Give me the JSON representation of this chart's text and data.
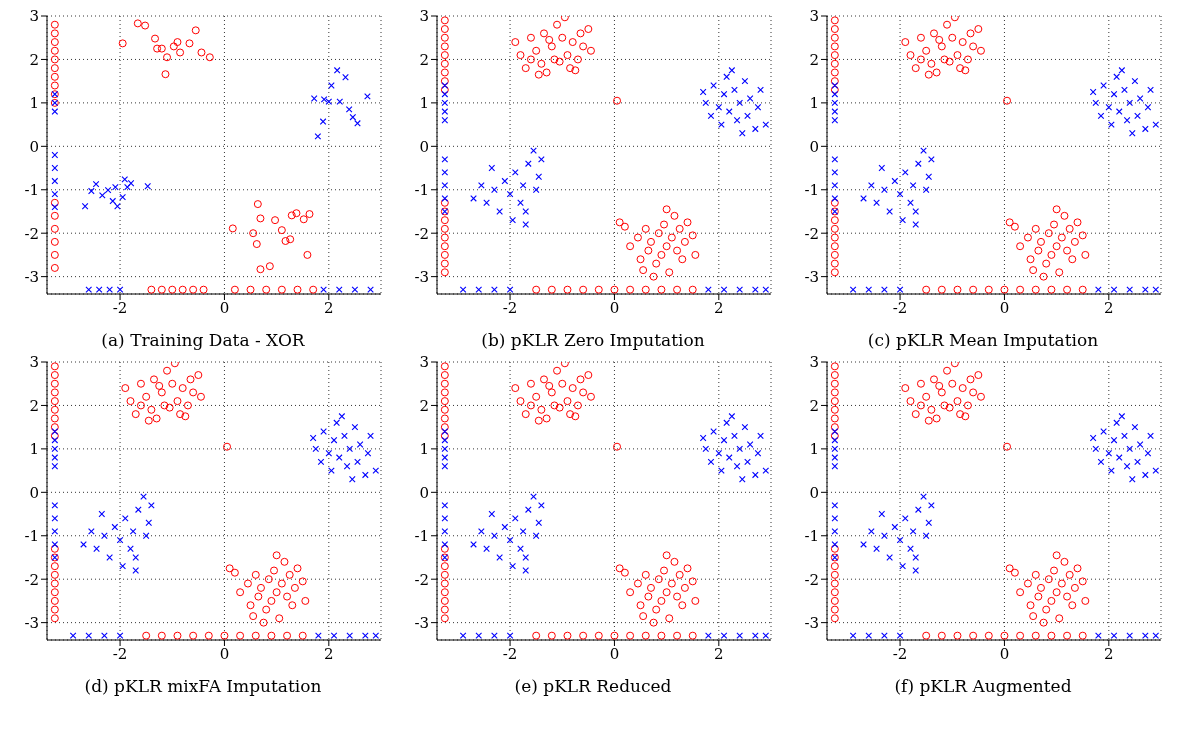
{
  "chart_data": [
    {
      "type": "scatter",
      "title": "(a) Training Data - XOR",
      "xlim": [
        -3.4,
        3
      ],
      "ylim": [
        -3.4,
        3
      ],
      "xticks": [
        -2,
        0,
        2
      ],
      "yticks": [
        -3,
        -2,
        -1,
        0,
        1,
        2,
        3
      ],
      "grid": true,
      "series": [
        {
          "color": "#ff0000",
          "marker": "circle",
          "x": [
            -1.95,
            -1.66,
            -1.33,
            -1.29,
            -1.2,
            -1.1,
            -1.13,
            -0.97,
            -0.85,
            -0.67,
            -0.55,
            -0.44,
            -0.28,
            -0.9,
            -1.52,
            0.16,
            0.55,
            0.64,
            0.69,
            0.62,
            0.69,
            0.87,
            1.1,
            1.17,
            1.26,
            1.29,
            1.38,
            1.52,
            1.63,
            1.59,
            0.97,
            -3.25,
            -3.25,
            -3.25,
            -3.25,
            -3.25,
            -3.25,
            -3.25,
            -3.25,
            -3.25,
            -3.25,
            -3.25,
            -3.25,
            -3.25,
            -3.25,
            -3.25,
            -3.25,
            -1.4,
            -1.2,
            -1.0,
            -0.8,
            -0.6,
            -0.4,
            0.2,
            0.5,
            0.8,
            1.1,
            1.4,
            1.7
          ],
          "values": [
            2.37,
            2.83,
            2.48,
            2.25,
            2.25,
            2.05,
            1.66,
            2.3,
            2.16,
            2.37,
            2.67,
            2.16,
            2.05,
            2.4,
            2.78,
            -1.89,
            -2.0,
            -1.33,
            -1.66,
            -2.25,
            -2.83,
            -2.76,
            -1.93,
            -2.18,
            -2.14,
            -1.59,
            -1.54,
            -1.68,
            -1.56,
            -2.5,
            -1.7,
            2.8,
            2.6,
            2.4,
            2.2,
            2.0,
            1.8,
            1.6,
            1.4,
            1.2,
            1.0,
            -1.3,
            -1.6,
            -1.9,
            -2.2,
            -2.5,
            -2.8,
            -3.3,
            -3.3,
            -3.3,
            -3.3,
            -3.3,
            -3.3,
            -3.3,
            -3.3,
            -3.3,
            -3.3,
            -3.3,
            -3.3
          ]
        },
        {
          "color": "#0000ff",
          "marker": "cross",
          "x": [
            1.72,
            1.79,
            1.89,
            1.91,
            2.05,
            2.16,
            2.21,
            2.32,
            2.39,
            2.46,
            2.55,
            2.74,
            2.0,
            -2.67,
            -2.55,
            -2.46,
            -2.34,
            -2.23,
            -2.14,
            -2.05,
            -1.95,
            -1.91,
            -1.86,
            -1.79,
            -2.09,
            -1.47,
            -3.25,
            -3.25,
            -3.25,
            -3.25,
            -3.25,
            -3.25,
            -3.25,
            -3.25,
            -2.6,
            -2.4,
            -2.2,
            -2.0,
            1.9,
            2.2,
            2.5,
            2.8
          ],
          "values": [
            1.1,
            0.23,
            0.57,
            1.08,
            1.4,
            1.75,
            1.03,
            1.59,
            0.85,
            0.67,
            0.53,
            1.15,
            1.03,
            -1.38,
            -1.03,
            -0.87,
            -1.13,
            -1.01,
            -1.26,
            -1.38,
            -1.17,
            -0.76,
            -0.94,
            -0.85,
            -0.94,
            -0.92,
            1.2,
            1.0,
            0.8,
            -0.2,
            -0.5,
            -0.8,
            -1.1,
            -1.4,
            -3.3,
            -3.3,
            -3.3,
            -3.3,
            -3.3,
            -3.3,
            -3.3,
            -3.3
          ]
        }
      ]
    },
    {
      "type": "scatter",
      "title": "(b) pKLR Zero Imputation",
      "xlim": [
        -3.4,
        3
      ],
      "ylim": [
        -3.4,
        3
      ],
      "xticks": [
        -2,
        0,
        2
      ],
      "yticks": [
        -3,
        -2,
        -1,
        0,
        1,
        2,
        3
      ],
      "grid": true,
      "series": [
        {
          "color": "#ff0000",
          "marker": "circle",
          "x": [
            -1.9,
            -1.8,
            -1.7,
            -1.6,
            -1.5,
            -1.4,
            -1.35,
            -1.3,
            -1.2,
            -1.15,
            -1.1,
            -1.0,
            -0.95,
            -0.9,
            -0.85,
            -0.8,
            -0.7,
            -0.65,
            -0.6,
            -0.5,
            -1.25,
            -1.05,
            -1.45,
            -0.75,
            -1.6,
            -0.45,
            0.05,
            0.1,
            0.2,
            0.3,
            0.45,
            0.5,
            0.6,
            0.65,
            0.7,
            0.8,
            0.85,
            0.9,
            0.95,
            1.0,
            1.05,
            1.1,
            1.15,
            1.2,
            1.25,
            1.3,
            1.35,
            1.4,
            1.5,
            1.55,
            0.75,
            1.0,
            0.55,
            -3.25,
            -3.25,
            -3.25,
            -3.25,
            -3.25,
            -3.25,
            -3.25,
            -3.25,
            -3.25,
            -3.25,
            -3.25,
            -3.25,
            -3.25,
            -3.25,
            -3.25,
            -3.25,
            -3.25,
            -3.25,
            -1.5,
            -1.2,
            -0.9,
            -0.6,
            -0.3,
            0,
            0.3,
            0.6,
            0.9,
            1.2,
            1.5
          ],
          "values": [
            2.4,
            2.1,
            1.8,
            2.5,
            2.2,
            1.9,
            2.6,
            1.7,
            2.3,
            2.0,
            2.8,
            2.5,
            2.97,
            2.1,
            1.8,
            2.4,
            2.0,
            2.6,
            2.3,
            2.7,
            2.45,
            1.95,
            1.65,
            1.75,
            2.0,
            2.2,
            1.05,
            -1.75,
            -1.85,
            -2.3,
            -2.1,
            -2.6,
            -1.9,
            -2.4,
            -2.2,
            -2.7,
            -2.0,
            -2.5,
            -1.8,
            -2.3,
            -2.9,
            -2.1,
            -1.6,
            -2.4,
            -1.9,
            -2.6,
            -2.2,
            -1.75,
            -2.05,
            -2.5,
            -3.0,
            -1.45,
            -2.85,
            2.9,
            2.7,
            2.5,
            2.3,
            2.1,
            1.9,
            1.7,
            1.5,
            1.3,
            -1.3,
            -1.5,
            -1.7,
            -1.9,
            -2.1,
            -2.3,
            -2.5,
            -2.7,
            -2.9,
            -3.3,
            -3.3,
            -3.3,
            -3.3,
            -3.3,
            -3.3,
            -3.3,
            -3.3,
            -3.3,
            -3.3,
            -3.3
          ]
        },
        {
          "color": "#0000ff",
          "marker": "cross",
          "x": [
            1.7,
            1.75,
            1.85,
            1.9,
            2.0,
            2.05,
            2.1,
            2.15,
            2.2,
            2.3,
            2.35,
            2.4,
            2.5,
            2.55,
            2.6,
            2.7,
            2.75,
            2.8,
            2.9,
            2.25,
            2.45,
            -2.7,
            -2.55,
            -2.45,
            -2.35,
            -2.3,
            -2.2,
            -2.1,
            -2.0,
            -1.95,
            -1.9,
            -1.8,
            -1.75,
            -1.7,
            -1.65,
            -1.55,
            -1.5,
            -1.45,
            -1.4,
            -1.7,
            -3.25,
            -3.25,
            -3.25,
            -3.25,
            -3.25,
            -3.25,
            -3.25,
            -3.25,
            -3.25,
            -3.25,
            -2.9,
            -2.6,
            -2.3,
            -2.0,
            1.8,
            2.1,
            2.4,
            2.7,
            2.9
          ],
          "values": [
            1.25,
            1.0,
            0.7,
            1.4,
            0.9,
            0.5,
            1.2,
            1.6,
            0.8,
            1.3,
            0.6,
            1.0,
            1.5,
            0.7,
            1.1,
            0.4,
            0.9,
            1.3,
            0.5,
            1.75,
            0.3,
            -1.2,
            -0.9,
            -1.3,
            -0.5,
            -1.0,
            -1.5,
            -0.8,
            -1.1,
            -1.7,
            -0.6,
            -1.3,
            -0.9,
            -1.5,
            -0.4,
            -0.1,
            -1.0,
            -0.7,
            -0.3,
            -1.8,
            1.4,
            1.2,
            1.0,
            0.8,
            0.6,
            -0.3,
            -0.6,
            -0.9,
            -1.2,
            -1.5,
            -3.3,
            -3.3,
            -3.3,
            -3.3,
            -3.3,
            -3.3,
            -3.3,
            -3.3,
            -3.3
          ]
        }
      ]
    },
    {
      "type": "scatter",
      "title": "(c) pKLR Mean Imputation",
      "xlim": [
        -3.4,
        3
      ],
      "ylim": [
        -3.4,
        3
      ],
      "xticks": [
        -2,
        0,
        2
      ],
      "yticks": [
        -3,
        -2,
        -1,
        0,
        1,
        2,
        3
      ],
      "grid": true,
      "series": [
        {
          "color": "#ff0000",
          "marker": "circle",
          "x": [
            -1.9,
            -1.8,
            -1.7,
            -1.6,
            -1.5,
            -1.4,
            -1.35,
            -1.3,
            -1.2,
            -1.15,
            -1.1,
            -1.0,
            -0.95,
            -0.9,
            -0.85,
            -0.8,
            -0.7,
            -0.65,
            -0.6,
            -0.5,
            -1.25,
            -1.05,
            -1.45,
            -0.75,
            -1.6,
            -0.45,
            0.05,
            0.1,
            0.2,
            0.3,
            0.45,
            0.5,
            0.6,
            0.65,
            0.7,
            0.8,
            0.85,
            0.9,
            0.95,
            1.0,
            1.05,
            1.1,
            1.15,
            1.2,
            1.25,
            1.3,
            1.35,
            1.4,
            1.5,
            1.55,
            0.75,
            1.0,
            0.55,
            -3.25,
            -3.25,
            -3.25,
            -3.25,
            -3.25,
            -3.25,
            -3.25,
            -3.25,
            -3.25,
            -3.25,
            -3.25,
            -3.25,
            -3.25,
            -3.25,
            -3.25,
            -3.25,
            -3.25,
            -3.25,
            -1.5,
            -1.2,
            -0.9,
            -0.6,
            -0.3,
            0,
            0.3,
            0.6,
            0.9,
            1.2,
            1.5
          ],
          "values": [
            2.4,
            2.1,
            1.8,
            2.5,
            2.2,
            1.9,
            2.6,
            1.7,
            2.3,
            2.0,
            2.8,
            2.5,
            2.97,
            2.1,
            1.8,
            2.4,
            2.0,
            2.6,
            2.3,
            2.7,
            2.45,
            1.95,
            1.65,
            1.75,
            2.0,
            2.2,
            1.05,
            -1.75,
            -1.85,
            -2.3,
            -2.1,
            -2.6,
            -1.9,
            -2.4,
            -2.2,
            -2.7,
            -2.0,
            -2.5,
            -1.8,
            -2.3,
            -2.9,
            -2.1,
            -1.6,
            -2.4,
            -1.9,
            -2.6,
            -2.2,
            -1.75,
            -2.05,
            -2.5,
            -3.0,
            -1.45,
            -2.85,
            2.9,
            2.7,
            2.5,
            2.3,
            2.1,
            1.9,
            1.7,
            1.5,
            1.3,
            -1.3,
            -1.5,
            -1.7,
            -1.9,
            -2.1,
            -2.3,
            -2.5,
            -2.7,
            -2.9,
            -3.3,
            -3.3,
            -3.3,
            -3.3,
            -3.3,
            -3.3,
            -3.3,
            -3.3,
            -3.3,
            -3.3,
            -3.3
          ]
        },
        {
          "color": "#0000ff",
          "marker": "cross",
          "x": [
            1.7,
            1.75,
            1.85,
            1.9,
            2.0,
            2.05,
            2.1,
            2.15,
            2.2,
            2.3,
            2.35,
            2.4,
            2.5,
            2.55,
            2.6,
            2.7,
            2.75,
            2.8,
            2.9,
            2.25,
            2.45,
            -2.7,
            -2.55,
            -2.45,
            -2.35,
            -2.3,
            -2.2,
            -2.1,
            -2.0,
            -1.95,
            -1.9,
            -1.8,
            -1.75,
            -1.7,
            -1.65,
            -1.55,
            -1.5,
            -1.45,
            -1.4,
            -1.7,
            -3.25,
            -3.25,
            -3.25,
            -3.25,
            -3.25,
            -3.25,
            -3.25,
            -3.25,
            -3.25,
            -3.25,
            -2.9,
            -2.6,
            -2.3,
            -2.0,
            1.8,
            2.1,
            2.4,
            2.7,
            2.9
          ],
          "values": [
            1.25,
            1.0,
            0.7,
            1.4,
            0.9,
            0.5,
            1.2,
            1.6,
            0.8,
            1.3,
            0.6,
            1.0,
            1.5,
            0.7,
            1.1,
            0.4,
            0.9,
            1.3,
            0.5,
            1.75,
            0.3,
            -1.2,
            -0.9,
            -1.3,
            -0.5,
            -1.0,
            -1.5,
            -0.8,
            -1.1,
            -1.7,
            -0.6,
            -1.3,
            -0.9,
            -1.5,
            -0.4,
            -0.1,
            -1.0,
            -0.7,
            -0.3,
            -1.8,
            1.4,
            1.2,
            1.0,
            0.8,
            0.6,
            -0.3,
            -0.6,
            -0.9,
            -1.2,
            -1.5,
            -3.3,
            -3.3,
            -3.3,
            -3.3,
            -3.3,
            -3.3,
            -3.3,
            -3.3,
            -3.3
          ]
        }
      ]
    },
    {
      "type": "scatter",
      "title": "(d) pKLR mixFA Imputation",
      "xlim": [
        -3.4,
        3
      ],
      "ylim": [
        -3.4,
        3
      ],
      "xticks": [
        -2,
        0,
        2
      ],
      "yticks": [
        -3,
        -2,
        -1,
        0,
        1,
        2,
        3
      ],
      "grid": true,
      "series": [
        {
          "color": "#ff0000",
          "marker": "circle",
          "x": [
            -1.9,
            -1.8,
            -1.7,
            -1.6,
            -1.5,
            -1.4,
            -1.35,
            -1.3,
            -1.2,
            -1.15,
            -1.1,
            -1.0,
            -0.95,
            -0.9,
            -0.85,
            -0.8,
            -0.7,
            -0.65,
            -0.6,
            -0.5,
            -1.25,
            -1.05,
            -1.45,
            -0.75,
            -1.6,
            -0.45,
            0.05,
            0.1,
            0.2,
            0.3,
            0.45,
            0.5,
            0.6,
            0.65,
            0.7,
            0.8,
            0.85,
            0.9,
            0.95,
            1.0,
            1.05,
            1.1,
            1.15,
            1.2,
            1.25,
            1.3,
            1.35,
            1.4,
            1.5,
            1.55,
            0.75,
            1.0,
            0.55,
            -3.25,
            -3.25,
            -3.25,
            -3.25,
            -3.25,
            -3.25,
            -3.25,
            -3.25,
            -3.25,
            -3.25,
            -3.25,
            -3.25,
            -3.25,
            -3.25,
            -3.25,
            -3.25,
            -3.25,
            -3.25,
            -1.5,
            -1.2,
            -0.9,
            -0.6,
            -0.3,
            0,
            0.3,
            0.6,
            0.9,
            1.2,
            1.5
          ],
          "values": [
            2.4,
            2.1,
            1.8,
            2.5,
            2.2,
            1.9,
            2.6,
            1.7,
            2.3,
            2.0,
            2.8,
            2.5,
            2.97,
            2.1,
            1.8,
            2.4,
            2.0,
            2.6,
            2.3,
            2.7,
            2.45,
            1.95,
            1.65,
            1.75,
            2.0,
            2.2,
            1.05,
            -1.75,
            -1.85,
            -2.3,
            -2.1,
            -2.6,
            -1.9,
            -2.4,
            -2.2,
            -2.7,
            -2.0,
            -2.5,
            -1.8,
            -2.3,
            -2.9,
            -2.1,
            -1.6,
            -2.4,
            -1.9,
            -2.6,
            -2.2,
            -1.75,
            -2.05,
            -2.5,
            -3.0,
            -1.45,
            -2.85,
            2.9,
            2.7,
            2.5,
            2.3,
            2.1,
            1.9,
            1.7,
            1.5,
            1.3,
            -1.3,
            -1.5,
            -1.7,
            -1.9,
            -2.1,
            -2.3,
            -2.5,
            -2.7,
            -2.9,
            -3.3,
            -3.3,
            -3.3,
            -3.3,
            -3.3,
            -3.3,
            -3.3,
            -3.3,
            -3.3,
            -3.3,
            -3.3
          ]
        },
        {
          "color": "#0000ff",
          "marker": "cross",
          "x": [
            1.7,
            1.75,
            1.85,
            1.9,
            2.0,
            2.05,
            2.1,
            2.15,
            2.2,
            2.3,
            2.35,
            2.4,
            2.5,
            2.55,
            2.6,
            2.7,
            2.75,
            2.8,
            2.9,
            2.25,
            2.45,
            -2.7,
            -2.55,
            -2.45,
            -2.35,
            -2.3,
            -2.2,
            -2.1,
            -2.0,
            -1.95,
            -1.9,
            -1.8,
            -1.75,
            -1.7,
            -1.65,
            -1.55,
            -1.5,
            -1.45,
            -1.4,
            -1.7,
            -3.25,
            -3.25,
            -3.25,
            -3.25,
            -3.25,
            -3.25,
            -3.25,
            -3.25,
            -3.25,
            -3.25,
            -2.9,
            -2.6,
            -2.3,
            -2.0,
            1.8,
            2.1,
            2.4,
            2.7,
            2.9
          ],
          "values": [
            1.25,
            1.0,
            0.7,
            1.4,
            0.9,
            0.5,
            1.2,
            1.6,
            0.8,
            1.3,
            0.6,
            1.0,
            1.5,
            0.7,
            1.1,
            0.4,
            0.9,
            1.3,
            0.5,
            1.75,
            0.3,
            -1.2,
            -0.9,
            -1.3,
            -0.5,
            -1.0,
            -1.5,
            -0.8,
            -1.1,
            -1.7,
            -0.6,
            -1.3,
            -0.9,
            -1.5,
            -0.4,
            -0.1,
            -1.0,
            -0.7,
            -0.3,
            -1.8,
            1.4,
            1.2,
            1.0,
            0.8,
            0.6,
            -0.3,
            -0.6,
            -0.9,
            -1.2,
            -1.5,
            -3.3,
            -3.3,
            -3.3,
            -3.3,
            -3.3,
            -3.3,
            -3.3,
            -3.3,
            -3.3
          ]
        }
      ]
    },
    {
      "type": "scatter",
      "title": "(e) pKLR Reduced",
      "xlim": [
        -3.4,
        3
      ],
      "ylim": [
        -3.4,
        3
      ],
      "xticks": [
        -2,
        0,
        2
      ],
      "yticks": [
        -3,
        -2,
        -1,
        0,
        1,
        2,
        3
      ],
      "grid": true,
      "series": [
        {
          "color": "#ff0000",
          "marker": "circle",
          "x": [
            -1.9,
            -1.8,
            -1.7,
            -1.6,
            -1.5,
            -1.4,
            -1.35,
            -1.3,
            -1.2,
            -1.15,
            -1.1,
            -1.0,
            -0.95,
            -0.9,
            -0.85,
            -0.8,
            -0.7,
            -0.65,
            -0.6,
            -0.5,
            -1.25,
            -1.05,
            -1.45,
            -0.75,
            -1.6,
            -0.45,
            0.05,
            0.1,
            0.2,
            0.3,
            0.45,
            0.5,
            0.6,
            0.65,
            0.7,
            0.8,
            0.85,
            0.9,
            0.95,
            1.0,
            1.05,
            1.1,
            1.15,
            1.2,
            1.25,
            1.3,
            1.35,
            1.4,
            1.5,
            1.55,
            0.75,
            1.0,
            0.55,
            -3.25,
            -3.25,
            -3.25,
            -3.25,
            -3.25,
            -3.25,
            -3.25,
            -3.25,
            -3.25,
            -3.25,
            -3.25,
            -3.25,
            -3.25,
            -3.25,
            -3.25,
            -3.25,
            -3.25,
            -3.25,
            -1.5,
            -1.2,
            -0.9,
            -0.6,
            -0.3,
            0,
            0.3,
            0.6,
            0.9,
            1.2,
            1.5
          ],
          "values": [
            2.4,
            2.1,
            1.8,
            2.5,
            2.2,
            1.9,
            2.6,
            1.7,
            2.3,
            2.0,
            2.8,
            2.5,
            2.97,
            2.1,
            1.8,
            2.4,
            2.0,
            2.6,
            2.3,
            2.7,
            2.45,
            1.95,
            1.65,
            1.75,
            2.0,
            2.2,
            1.05,
            -1.75,
            -1.85,
            -2.3,
            -2.1,
            -2.6,
            -1.9,
            -2.4,
            -2.2,
            -2.7,
            -2.0,
            -2.5,
            -1.8,
            -2.3,
            -2.9,
            -2.1,
            -1.6,
            -2.4,
            -1.9,
            -2.6,
            -2.2,
            -1.75,
            -2.05,
            -2.5,
            -3.0,
            -1.45,
            -2.85,
            2.9,
            2.7,
            2.5,
            2.3,
            2.1,
            1.9,
            1.7,
            1.5,
            1.3,
            -1.3,
            -1.5,
            -1.7,
            -1.9,
            -2.1,
            -2.3,
            -2.5,
            -2.7,
            -2.9,
            -3.3,
            -3.3,
            -3.3,
            -3.3,
            -3.3,
            -3.3,
            -3.3,
            -3.3,
            -3.3,
            -3.3,
            -3.3
          ]
        },
        {
          "color": "#0000ff",
          "marker": "cross",
          "x": [
            1.7,
            1.75,
            1.85,
            1.9,
            2.0,
            2.05,
            2.1,
            2.15,
            2.2,
            2.3,
            2.35,
            2.4,
            2.5,
            2.55,
            2.6,
            2.7,
            2.75,
            2.8,
            2.9,
            2.25,
            2.45,
            -2.7,
            -2.55,
            -2.45,
            -2.35,
            -2.3,
            -2.2,
            -2.1,
            -2.0,
            -1.95,
            -1.9,
            -1.8,
            -1.75,
            -1.7,
            -1.65,
            -1.55,
            -1.5,
            -1.45,
            -1.4,
            -1.7,
            -3.25,
            -3.25,
            -3.25,
            -3.25,
            -3.25,
            -3.25,
            -3.25,
            -3.25,
            -3.25,
            -3.25,
            -2.9,
            -2.6,
            -2.3,
            -2.0,
            1.8,
            2.1,
            2.4,
            2.7,
            2.9
          ],
          "values": [
            1.25,
            1.0,
            0.7,
            1.4,
            0.9,
            0.5,
            1.2,
            1.6,
            0.8,
            1.3,
            0.6,
            1.0,
            1.5,
            0.7,
            1.1,
            0.4,
            0.9,
            1.3,
            0.5,
            1.75,
            0.3,
            -1.2,
            -0.9,
            -1.3,
            -0.5,
            -1.0,
            -1.5,
            -0.8,
            -1.1,
            -1.7,
            -0.6,
            -1.3,
            -0.9,
            -1.5,
            -0.4,
            -0.1,
            -1.0,
            -0.7,
            -0.3,
            -1.8,
            1.4,
            1.2,
            1.0,
            0.8,
            0.6,
            -0.3,
            -0.6,
            -0.9,
            -1.2,
            -1.5,
            -3.3,
            -3.3,
            -3.3,
            -3.3,
            -3.3,
            -3.3,
            -3.3,
            -3.3,
            -3.3
          ]
        }
      ]
    },
    {
      "type": "scatter",
      "title": "(f) pKLR Augmented",
      "xlim": [
        -3.4,
        3
      ],
      "ylim": [
        -3.4,
        3
      ],
      "xticks": [
        -2,
        0,
        2
      ],
      "yticks": [
        -3,
        -2,
        -1,
        0,
        1,
        2,
        3
      ],
      "grid": true,
      "series": [
        {
          "color": "#ff0000",
          "marker": "circle",
          "x": [
            -1.9,
            -1.8,
            -1.7,
            -1.6,
            -1.5,
            -1.4,
            -1.35,
            -1.3,
            -1.2,
            -1.15,
            -1.1,
            -1.0,
            -0.95,
            -0.9,
            -0.85,
            -0.8,
            -0.7,
            -0.65,
            -0.6,
            -0.5,
            -1.25,
            -1.05,
            -1.45,
            -0.75,
            -1.6,
            -0.45,
            0.05,
            0.1,
            0.2,
            0.3,
            0.45,
            0.5,
            0.6,
            0.65,
            0.7,
            0.8,
            0.85,
            0.9,
            0.95,
            1.0,
            1.05,
            1.1,
            1.15,
            1.2,
            1.25,
            1.3,
            1.35,
            1.4,
            1.5,
            1.55,
            0.75,
            1.0,
            0.55,
            -3.25,
            -3.25,
            -3.25,
            -3.25,
            -3.25,
            -3.25,
            -3.25,
            -3.25,
            -3.25,
            -3.25,
            -3.25,
            -3.25,
            -3.25,
            -3.25,
            -3.25,
            -3.25,
            -3.25,
            -3.25,
            -1.5,
            -1.2,
            -0.9,
            -0.6,
            -0.3,
            0,
            0.3,
            0.6,
            0.9,
            1.2,
            1.5
          ],
          "values": [
            2.4,
            2.1,
            1.8,
            2.5,
            2.2,
            1.9,
            2.6,
            1.7,
            2.3,
            2.0,
            2.8,
            2.5,
            2.97,
            2.1,
            1.8,
            2.4,
            2.0,
            2.6,
            2.3,
            2.7,
            2.45,
            1.95,
            1.65,
            1.75,
            2.0,
            2.2,
            1.05,
            -1.75,
            -1.85,
            -2.3,
            -2.1,
            -2.6,
            -1.9,
            -2.4,
            -2.2,
            -2.7,
            -2.0,
            -2.5,
            -1.8,
            -2.3,
            -2.9,
            -2.1,
            -1.6,
            -2.4,
            -1.9,
            -2.6,
            -2.2,
            -1.75,
            -2.05,
            -2.5,
            -3.0,
            -1.45,
            -2.85,
            2.9,
            2.7,
            2.5,
            2.3,
            2.1,
            1.9,
            1.7,
            1.5,
            1.3,
            -1.3,
            -1.5,
            -1.7,
            -1.9,
            -2.1,
            -2.3,
            -2.5,
            -2.7,
            -2.9,
            -3.3,
            -3.3,
            -3.3,
            -3.3,
            -3.3,
            -3.3,
            -3.3,
            -3.3,
            -3.3,
            -3.3,
            -3.3
          ]
        },
        {
          "color": "#0000ff",
          "marker": "cross",
          "x": [
            1.7,
            1.75,
            1.85,
            1.9,
            2.0,
            2.05,
            2.1,
            2.15,
            2.2,
            2.3,
            2.35,
            2.4,
            2.5,
            2.55,
            2.6,
            2.7,
            2.75,
            2.8,
            2.9,
            2.25,
            2.45,
            -2.7,
            -2.55,
            -2.45,
            -2.35,
            -2.3,
            -2.2,
            -2.1,
            -2.0,
            -1.95,
            -1.9,
            -1.8,
            -1.75,
            -1.7,
            -1.65,
            -1.55,
            -1.5,
            -1.45,
            -1.4,
            -1.7,
            -3.25,
            -3.25,
            -3.25,
            -3.25,
            -3.25,
            -3.25,
            -3.25,
            -3.25,
            -3.25,
            -3.25,
            -2.9,
            -2.6,
            -2.3,
            -2.0,
            1.8,
            2.1,
            2.4,
            2.7,
            2.9
          ],
          "values": [
            1.25,
            1.0,
            0.7,
            1.4,
            0.9,
            0.5,
            1.2,
            1.6,
            0.8,
            1.3,
            0.6,
            1.0,
            1.5,
            0.7,
            1.1,
            0.4,
            0.9,
            1.3,
            0.5,
            1.75,
            0.3,
            -1.2,
            -0.9,
            -1.3,
            -0.5,
            -1.0,
            -1.5,
            -0.8,
            -1.1,
            -1.7,
            -0.6,
            -1.3,
            -0.9,
            -1.5,
            -0.4,
            -0.1,
            -1.0,
            -0.7,
            -0.3,
            -1.8,
            1.4,
            1.2,
            1.0,
            0.8,
            0.6,
            -0.3,
            -0.6,
            -0.9,
            -1.2,
            -1.5,
            -3.3,
            -3.3,
            -3.3,
            -3.3,
            -3.3,
            -3.3,
            -3.3,
            -3.3,
            -3.3
          ]
        }
      ]
    }
  ]
}
